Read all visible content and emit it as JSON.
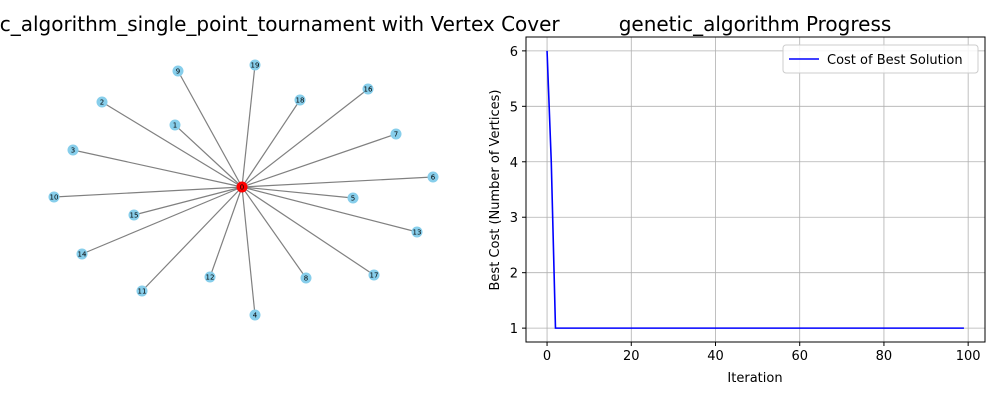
{
  "figure": {
    "left_title": "genetic_algorithm_single_point_tournament with Vertex Cover",
    "right_title": "genetic_algorithm Progress"
  },
  "colors": {
    "node_fill": "#87ceeb",
    "cover_node_fill": "#ff0000",
    "edge": "#808080",
    "line": "#0000ff",
    "grid": "#b0b0b0",
    "axis": "#000000"
  },
  "graph": {
    "center_node": "0",
    "nodes": [
      "0",
      "1",
      "2",
      "3",
      "4",
      "5",
      "6",
      "7",
      "9",
      "10",
      "11",
      "12",
      "13",
      "14",
      "15",
      "16",
      "17",
      "18",
      "19",
      "8"
    ],
    "cover_nodes": [
      "0"
    ]
  },
  "chart_data": {
    "type": "line",
    "title": "genetic_algorithm Progress",
    "xlabel": "Iteration",
    "ylabel": "Best Cost (Number of Vertices)",
    "xlim": [
      -5,
      104
    ],
    "ylim": [
      0.75,
      6.25
    ],
    "x_ticks": [
      0,
      20,
      40,
      60,
      80,
      100
    ],
    "y_ticks": [
      1,
      2,
      3,
      4,
      5,
      6
    ],
    "grid": true,
    "legend_position": "upper right",
    "series": [
      {
        "name": "Cost of Best Solution",
        "color": "#0000ff",
        "x": [
          0,
          1,
          2,
          99
        ],
        "y": [
          6,
          4,
          1,
          1
        ]
      }
    ]
  }
}
